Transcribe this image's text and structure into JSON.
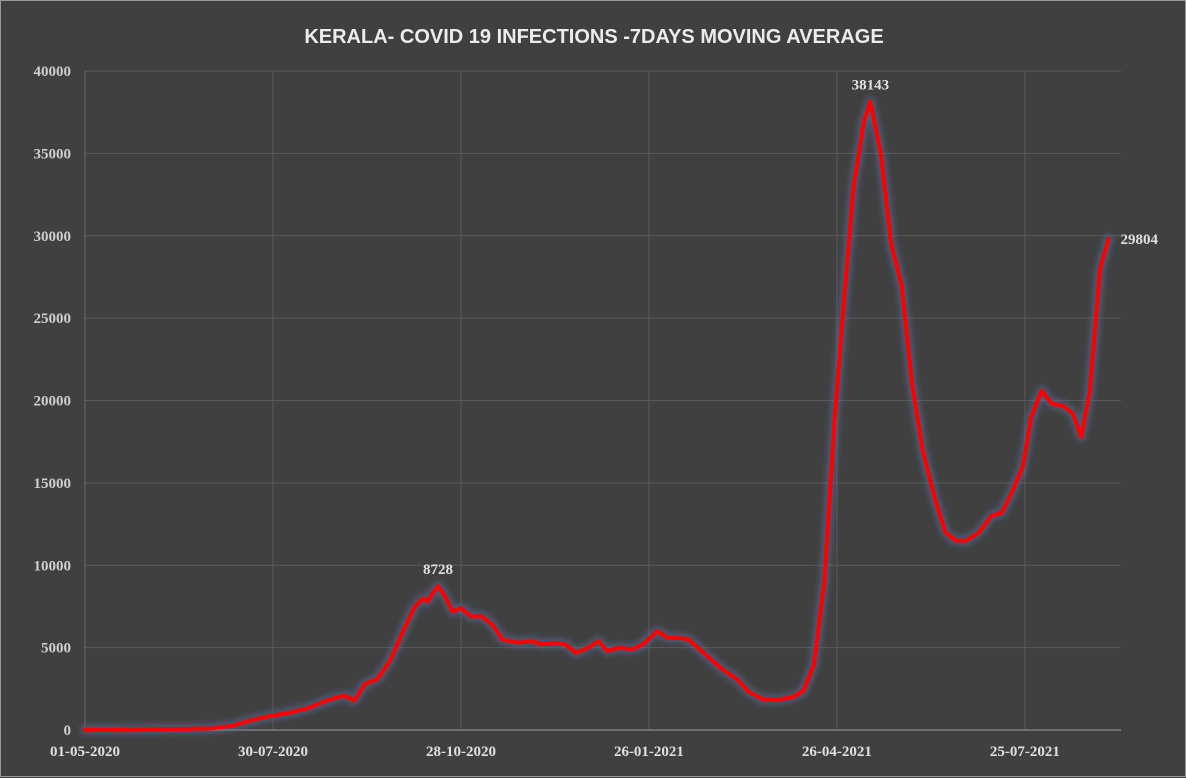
{
  "chart_data": {
    "type": "line",
    "title": "KERALA- COVID 19 INFECTIONS -7DAYS MOVING AVERAGE",
    "xlabel": "",
    "ylabel": "",
    "x_tick_labels": [
      "01-05-2020",
      "30-07-2020",
      "28-10-2020",
      "26-01-2021",
      "26-04-2021",
      "25-07-2021"
    ],
    "y_tick_labels": [
      "0",
      "5000",
      "10000",
      "15000",
      "20000",
      "25000",
      "30000",
      "35000",
      "40000"
    ],
    "ylim": [
      0,
      40000
    ],
    "xlim": [
      "2020-05-01",
      "2021-09-09"
    ],
    "grid": true,
    "legend": "none",
    "line_color": "#ff0000",
    "glow_color": "#5a6ea0",
    "series": [
      {
        "points": [
          [
            "2020-05-01",
            20
          ],
          [
            "2020-05-15",
            10
          ],
          [
            "2020-06-01",
            40
          ],
          [
            "2020-06-15",
            60
          ],
          [
            "2020-07-01",
            110
          ],
          [
            "2020-07-10",
            250
          ],
          [
            "2020-07-20",
            600
          ],
          [
            "2020-07-28",
            850
          ],
          [
            "2020-08-05",
            1000
          ],
          [
            "2020-08-15",
            1300
          ],
          [
            "2020-08-25",
            1800
          ],
          [
            "2020-09-02",
            2100
          ],
          [
            "2020-09-07",
            1800
          ],
          [
            "2020-09-12",
            2800
          ],
          [
            "2020-09-18",
            3100
          ],
          [
            "2020-09-24",
            4200
          ],
          [
            "2020-10-01",
            6200
          ],
          [
            "2020-10-06",
            7500
          ],
          [
            "2020-10-10",
            8000
          ],
          [
            "2020-10-12",
            7800
          ],
          [
            "2020-10-15",
            8400
          ],
          [
            "2020-10-17",
            8728
          ],
          [
            "2020-10-20",
            8200
          ],
          [
            "2020-10-24",
            7200
          ],
          [
            "2020-10-28",
            7400
          ],
          [
            "2020-11-02",
            6900
          ],
          [
            "2020-11-07",
            6900
          ],
          [
            "2020-11-12",
            6400
          ],
          [
            "2020-11-17",
            5500
          ],
          [
            "2020-11-24",
            5300
          ],
          [
            "2020-12-01",
            5400
          ],
          [
            "2020-12-06",
            5200
          ],
          [
            "2020-12-12",
            5300
          ],
          [
            "2020-12-17",
            5200
          ],
          [
            "2020-12-22",
            4700
          ],
          [
            "2020-12-28",
            5000
          ],
          [
            "2021-01-02",
            5400
          ],
          [
            "2021-01-06",
            4800
          ],
          [
            "2021-01-12",
            5000
          ],
          [
            "2021-01-18",
            4900
          ],
          [
            "2021-01-23",
            5200
          ],
          [
            "2021-01-30",
            6000
          ],
          [
            "2021-02-04",
            5600
          ],
          [
            "2021-02-09",
            5600
          ],
          [
            "2021-02-14",
            5500
          ],
          [
            "2021-02-22",
            4600
          ],
          [
            "2021-03-02",
            3700
          ],
          [
            "2021-03-09",
            3100
          ],
          [
            "2021-03-15",
            2300
          ],
          [
            "2021-03-22",
            1850
          ],
          [
            "2021-03-29",
            1850
          ],
          [
            "2021-04-05",
            2000
          ],
          [
            "2021-04-10",
            2400
          ],
          [
            "2021-04-15",
            4000
          ],
          [
            "2021-04-20",
            9000
          ],
          [
            "2021-04-25",
            19000
          ],
          [
            "2021-04-30",
            27000
          ],
          [
            "2021-05-04",
            33000
          ],
          [
            "2021-05-09",
            37000
          ],
          [
            "2021-05-12",
            38143
          ],
          [
            "2021-05-17",
            35000
          ],
          [
            "2021-05-22",
            29500
          ],
          [
            "2021-05-27",
            27000
          ],
          [
            "2021-06-01",
            21000
          ],
          [
            "2021-06-06",
            17000
          ],
          [
            "2021-06-12",
            14000
          ],
          [
            "2021-06-17",
            12000
          ],
          [
            "2021-06-22",
            11500
          ],
          [
            "2021-06-27",
            11500
          ],
          [
            "2021-07-03",
            12000
          ],
          [
            "2021-07-09",
            13000
          ],
          [
            "2021-07-14",
            13200
          ],
          [
            "2021-07-19",
            14500
          ],
          [
            "2021-07-24",
            16000
          ],
          [
            "2021-07-28",
            19000
          ],
          [
            "2021-08-02",
            20600
          ],
          [
            "2021-08-07",
            19800
          ],
          [
            "2021-08-12",
            19700
          ],
          [
            "2021-08-17",
            19200
          ],
          [
            "2021-08-21",
            17800
          ],
          [
            "2021-08-25",
            20500
          ],
          [
            "2021-08-30",
            28000
          ],
          [
            "2021-09-03",
            29804
          ]
        ]
      }
    ],
    "data_labels": [
      {
        "date": "2020-10-17",
        "value": 8728,
        "text": "8728",
        "position": "above"
      },
      {
        "date": "2021-05-12",
        "value": 38143,
        "text": "38143",
        "position": "above"
      },
      {
        "date": "2021-09-03",
        "value": 29804,
        "text": "29804",
        "position": "right"
      }
    ]
  }
}
